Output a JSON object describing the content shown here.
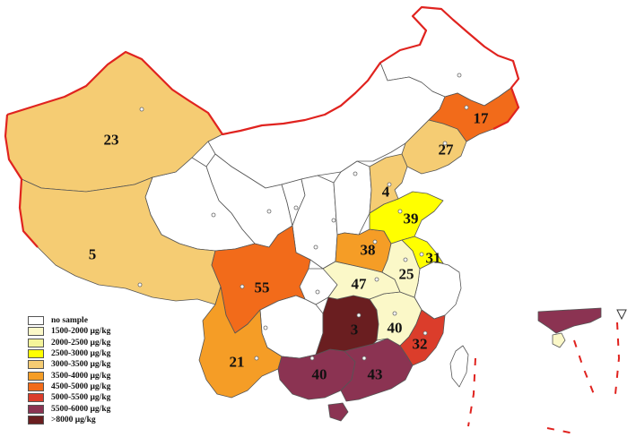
{
  "colors": {
    "border": "#e0231f",
    "province_line": "#555555",
    "no_sample": "#ffffff",
    "c1500_2000": "#fbf8c8",
    "c2000_2500": "#f4f49a",
    "c2500_3000": "#ffff00",
    "c3000_3500": "#f5cc73",
    "c3500_4000": "#f59d26",
    "c4500_5000": "#f26b1a",
    "c5000_5500": "#db3d2b",
    "c5500_6000": "#8b3352",
    "c8000": "#6a1e20"
  },
  "legend": [
    {
      "label": "no sample",
      "color": "#ffffff"
    },
    {
      "label": "1500-2000 μg/kg",
      "color": "#fbf8c8"
    },
    {
      "label": "2000-2500 μg/kg",
      "color": "#f4f49a"
    },
    {
      "label": "2500-3000 μg/kg",
      "color": "#ffff00"
    },
    {
      "label": "3000-3500 μg/kg",
      "color": "#f5cc73"
    },
    {
      "label": "3500-4000 μg/kg",
      "color": "#f59d26"
    },
    {
      "label": "4500-5000 μg/kg",
      "color": "#f26b1a"
    },
    {
      "label": "5000-5500 μg/kg",
      "color": "#db3d2b"
    },
    {
      "label": "5500-6000 μg/kg",
      "color": "#8b3352"
    },
    {
      "label": ">8000 μg/kg",
      "color": "#6a1e20"
    }
  ],
  "regions": {
    "xinjiang": {
      "value": "23",
      "color": "#f5cc73"
    },
    "tibet": {
      "value": "5",
      "color": "#f5cc73"
    },
    "sichuan": {
      "value": "55",
      "color": "#f26b1a"
    },
    "yunnan": {
      "value": "21",
      "color": "#f59d26"
    },
    "guangxi": {
      "value": "40",
      "color": "#8b3352"
    },
    "guangdong": {
      "value": "43",
      "color": "#8b3352"
    },
    "hunan": {
      "value": "3",
      "color": "#6a1e20"
    },
    "jiangxi": {
      "value": "40",
      "color": "#fbf8c8"
    },
    "fujian": {
      "value": "32",
      "color": "#db3d2b"
    },
    "hubei": {
      "value": "47",
      "color": "#fbf8c8"
    },
    "anhui": {
      "value": "25",
      "color": "#fbf8c8"
    },
    "jiangsu": {
      "value": "31",
      "color": "#ffff00"
    },
    "henan": {
      "value": "38",
      "color": "#f59d26"
    },
    "shandong": {
      "value": "39",
      "color": "#ffff00"
    },
    "hebei": {
      "value": "4",
      "color": "#f5cc73"
    },
    "liaoning": {
      "value": "27",
      "color": "#f5cc73"
    },
    "jilin": {
      "value": "17",
      "color": "#f26b1a"
    }
  }
}
